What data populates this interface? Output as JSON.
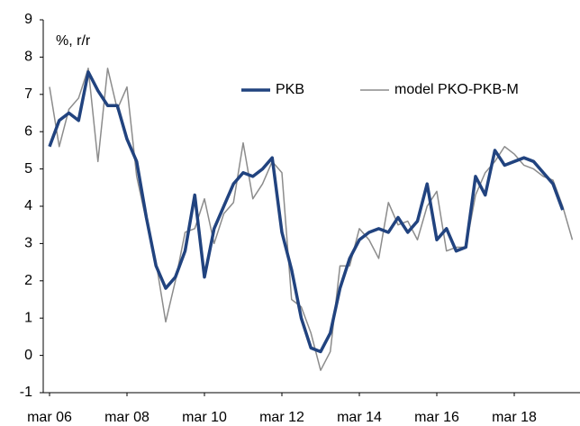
{
  "chart_data": {
    "type": "line",
    "annotation": "%, r/r",
    "categories": [
      "mar 06",
      null,
      null,
      null,
      null,
      null,
      null,
      null,
      "mar 08",
      null,
      null,
      null,
      null,
      null,
      null,
      null,
      "mar 10",
      null,
      null,
      null,
      null,
      null,
      null,
      null,
      "mar 12",
      null,
      null,
      null,
      null,
      null,
      null,
      null,
      "mar 14",
      null,
      null,
      null,
      null,
      null,
      null,
      null,
      "mar 16",
      null,
      null,
      null,
      null,
      null,
      null,
      null,
      "mar 18",
      null,
      null,
      null,
      null,
      null,
      null
    ],
    "series": [
      {
        "name": "PKB",
        "color": "#21437f",
        "width": 3.5,
        "values": [
          5.6,
          6.3,
          6.5,
          6.3,
          7.6,
          7.1,
          6.7,
          6.7,
          5.8,
          5.2,
          3.7,
          2.4,
          1.8,
          2.1,
          2.8,
          4.3,
          2.1,
          3.4,
          4.0,
          4.6,
          4.9,
          4.8,
          5.0,
          5.3,
          3.3,
          2.3,
          1.0,
          0.2,
          0.1,
          0.6,
          1.8,
          2.6,
          3.1,
          3.3,
          3.4,
          3.3,
          3.7,
          3.3,
          3.6,
          4.6,
          3.1,
          3.4,
          2.8,
          2.9,
          4.8,
          4.3,
          5.5,
          5.1,
          5.2,
          5.3,
          5.2,
          4.9,
          4.6,
          3.9,
          null
        ]
      },
      {
        "name": "model PKO-PKB-M",
        "color": "#8c8c8c",
        "width": 1.5,
        "values": [
          7.2,
          5.6,
          6.6,
          6.9,
          7.7,
          5.2,
          7.7,
          6.6,
          7.2,
          4.8,
          3.6,
          2.5,
          0.9,
          2.0,
          3.3,
          3.4,
          4.2,
          3.0,
          3.8,
          4.1,
          5.7,
          4.2,
          4.6,
          5.2,
          4.9,
          1.5,
          1.3,
          0.6,
          -0.4,
          0.1,
          2.4,
          2.4,
          3.4,
          3.1,
          2.6,
          4.1,
          3.5,
          3.6,
          3.1,
          4.0,
          4.4,
          2.8,
          2.9,
          2.9,
          4.3,
          4.9,
          5.2,
          5.6,
          5.4,
          5.1,
          5.0,
          4.8,
          4.7,
          4.0,
          3.1
        ]
      }
    ],
    "ylim": [
      -1,
      9
    ],
    "yticks": [
      -1,
      0,
      1,
      2,
      3,
      4,
      5,
      6,
      7,
      8,
      9
    ],
    "legend": "top-right"
  }
}
